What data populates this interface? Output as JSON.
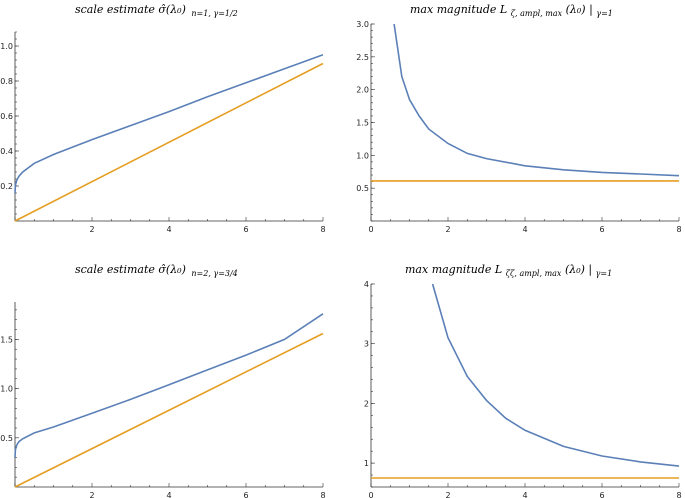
{
  "chart_data": [
    {
      "type": "line",
      "title": "scale estimate σ̂(λ₀)",
      "title_subscript": "n=1, γ=1/2",
      "xlim": [
        0,
        8
      ],
      "ylim": [
        0,
        1.08
      ],
      "x_ticks": [
        "2",
        "4",
        "6",
        "8"
      ],
      "y_ticks": [
        "0.2",
        "0.4",
        "0.6",
        "0.8",
        "1.0"
      ],
      "x_tick_values": [
        2,
        4,
        6,
        8
      ],
      "y_tick_values": [
        0.2,
        0.4,
        0.6,
        0.8,
        1.0
      ],
      "grid": false,
      "series": [
        {
          "color": "#5b80b7",
          "x": [
            0,
            0.01,
            0.05,
            0.1,
            0.2,
            0.5,
            1,
            2,
            3,
            4,
            5,
            6,
            7,
            8
          ],
          "y": [
            0.16,
            0.205,
            0.235,
            0.255,
            0.28,
            0.33,
            0.38,
            0.465,
            0.545,
            0.625,
            0.71,
            0.79,
            0.87,
            0.95
          ]
        },
        {
          "color": "#e59e22",
          "x": [
            0,
            8
          ],
          "y": [
            0,
            0.9
          ]
        }
      ]
    },
    {
      "type": "line",
      "title": "max magnitude L",
      "title_subscript": "ζ, ampl, max",
      "title_tail": "(λ₀) |",
      "title_tail_subscript": "γ=1",
      "xlim": [
        0,
        8
      ],
      "ylim": [
        0,
        3.0
      ],
      "x_ticks": [
        "0",
        "2",
        "4",
        "6",
        "8"
      ],
      "y_ticks": [
        "0.5",
        "1.0",
        "1.5",
        "2.0",
        "2.5",
        "3.0"
      ],
      "x_tick_values": [
        0,
        2,
        4,
        6,
        8
      ],
      "y_tick_values": [
        0.5,
        1.0,
        1.5,
        2.0,
        2.5,
        3.0
      ],
      "grid": false,
      "series": [
        {
          "color": "#5b80b7",
          "x": [
            0.6,
            0.8,
            1,
            1.25,
            1.5,
            2,
            2.5,
            3,
            4,
            5,
            6,
            7,
            8
          ],
          "y": [
            3.0,
            2.2,
            1.85,
            1.6,
            1.4,
            1.18,
            1.03,
            0.95,
            0.84,
            0.78,
            0.74,
            0.715,
            0.69
          ]
        },
        {
          "color": "#e59e22",
          "x": [
            0,
            8
          ],
          "y": [
            0.61,
            0.61
          ]
        }
      ]
    },
    {
      "type": "line",
      "title": "scale estimate σ̂(λ₀)",
      "title_subscript": "n=2, γ=3/4",
      "xlim": [
        0,
        8
      ],
      "ylim": [
        0,
        1.88
      ],
      "x_ticks": [
        "2",
        "4",
        "6",
        "8"
      ],
      "y_ticks": [
        "0.5",
        "1.0",
        "1.5"
      ],
      "x_tick_values": [
        2,
        4,
        6,
        8
      ],
      "y_tick_values": [
        0.5,
        1.0,
        1.5
      ],
      "grid": false,
      "series": [
        {
          "color": "#5b80b7",
          "x": [
            0,
            0.01,
            0.05,
            0.1,
            0.2,
            0.5,
            1,
            2,
            3,
            4,
            5,
            6,
            7,
            8
          ],
          "y": [
            0.3,
            0.38,
            0.43,
            0.46,
            0.49,
            0.55,
            0.61,
            0.75,
            0.89,
            1.04,
            1.19,
            1.34,
            1.5,
            1.76
          ]
        },
        {
          "color": "#e59e22",
          "x": [
            0,
            8
          ],
          "y": [
            0,
            1.56
          ]
        }
      ]
    },
    {
      "type": "line",
      "title": "max magnitude L",
      "title_subscript": "ζζ, ampl, max",
      "title_tail": "(λ₀) |",
      "title_tail_subscript": "γ=1",
      "xlim": [
        0,
        8
      ],
      "ylim": [
        0.6,
        4.0
      ],
      "x_ticks": [
        "0",
        "2",
        "4",
        "6",
        "8"
      ],
      "y_ticks": [
        "1",
        "2",
        "3",
        "4"
      ],
      "x_tick_values": [
        0,
        2,
        4,
        6,
        8
      ],
      "y_tick_values": [
        1,
        2,
        3,
        4
      ],
      "grid": false,
      "series": [
        {
          "color": "#5b80b7",
          "x": [
            1.6,
            2,
            2.5,
            3,
            3.5,
            4,
            5,
            6,
            7,
            8
          ],
          "y": [
            4.0,
            3.1,
            2.45,
            2.05,
            1.75,
            1.55,
            1.28,
            1.12,
            1.02,
            0.95
          ]
        },
        {
          "color": "#e59e22",
          "x": [
            0,
            8
          ],
          "y": [
            0.75,
            0.75
          ]
        }
      ]
    }
  ]
}
